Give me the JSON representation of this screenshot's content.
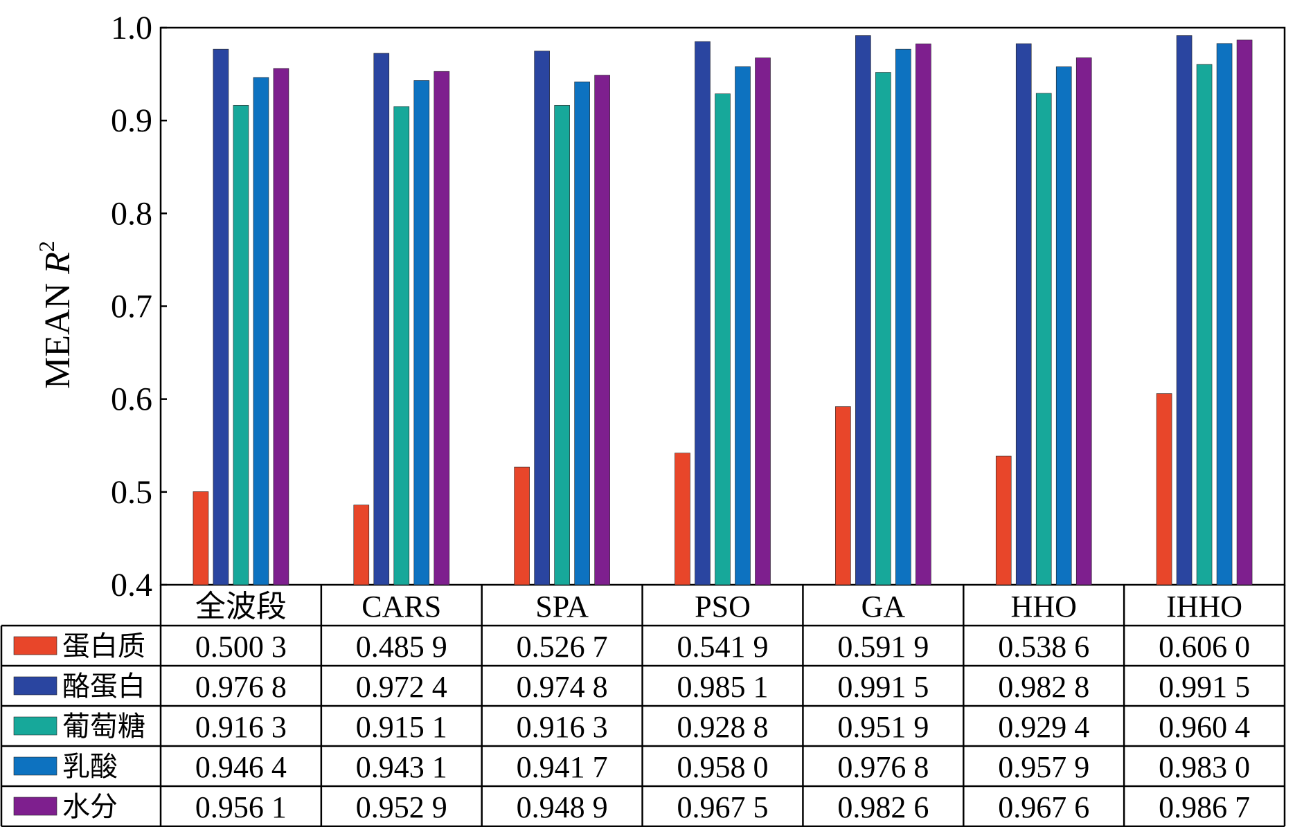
{
  "chart_data": {
    "type": "bar",
    "ylabel_prefix": "MEAN ",
    "ylabel_var": "R",
    "ylabel_sup": "2",
    "ylim": [
      0.4,
      1.0
    ],
    "yticks": [
      "0.4",
      "0.5",
      "0.6",
      "0.7",
      "0.8",
      "0.9",
      "1.0"
    ],
    "grid": false,
    "legend_placement": "table-left",
    "categories": [
      "全波段",
      "CARS",
      "SPA",
      "PSO",
      "GA",
      "HHO",
      "IHHO"
    ],
    "series": [
      {
        "name": "蛋白质",
        "color": "#e8462a",
        "values": [
          0.5003,
          0.4859,
          0.5267,
          0.5419,
          0.5919,
          0.5386,
          0.606
        ],
        "labels": [
          "0.500 3",
          "0.485 9",
          "0.526 7",
          "0.541 9",
          "0.591 9",
          "0.538 6",
          "0.606 0"
        ]
      },
      {
        "name": "酪蛋白",
        "color": "#2a45a0",
        "values": [
          0.9768,
          0.9724,
          0.9748,
          0.9851,
          0.9915,
          0.9828,
          0.9915
        ],
        "labels": [
          "0.976 8",
          "0.972 4",
          "0.974 8",
          "0.985 1",
          "0.991 5",
          "0.982 8",
          "0.991 5"
        ]
      },
      {
        "name": "葡萄糖",
        "color": "#17a89a",
        "values": [
          0.9163,
          0.9151,
          0.9163,
          0.9288,
          0.9519,
          0.9294,
          0.9604
        ],
        "labels": [
          "0.916 3",
          "0.915 1",
          "0.916 3",
          "0.928 8",
          "0.951 9",
          "0.929 4",
          "0.960 4"
        ]
      },
      {
        "name": "乳酸",
        "color": "#0d72c0",
        "values": [
          0.9464,
          0.9431,
          0.9417,
          0.958,
          0.9768,
          0.9579,
          0.983
        ],
        "labels": [
          "0.946 4",
          "0.943 1",
          "0.941 7",
          "0.958 0",
          "0.976 8",
          "0.957 9",
          "0.983 0"
        ]
      },
      {
        "name": "水分",
        "color": "#7e1f8e",
        "values": [
          0.9561,
          0.9529,
          0.9489,
          0.9675,
          0.9826,
          0.9676,
          0.9867
        ],
        "labels": [
          "0.956 1",
          "0.952 9",
          "0.948 9",
          "0.967 5",
          "0.982 6",
          "0.967 6",
          "0.986 7"
        ]
      }
    ]
  }
}
